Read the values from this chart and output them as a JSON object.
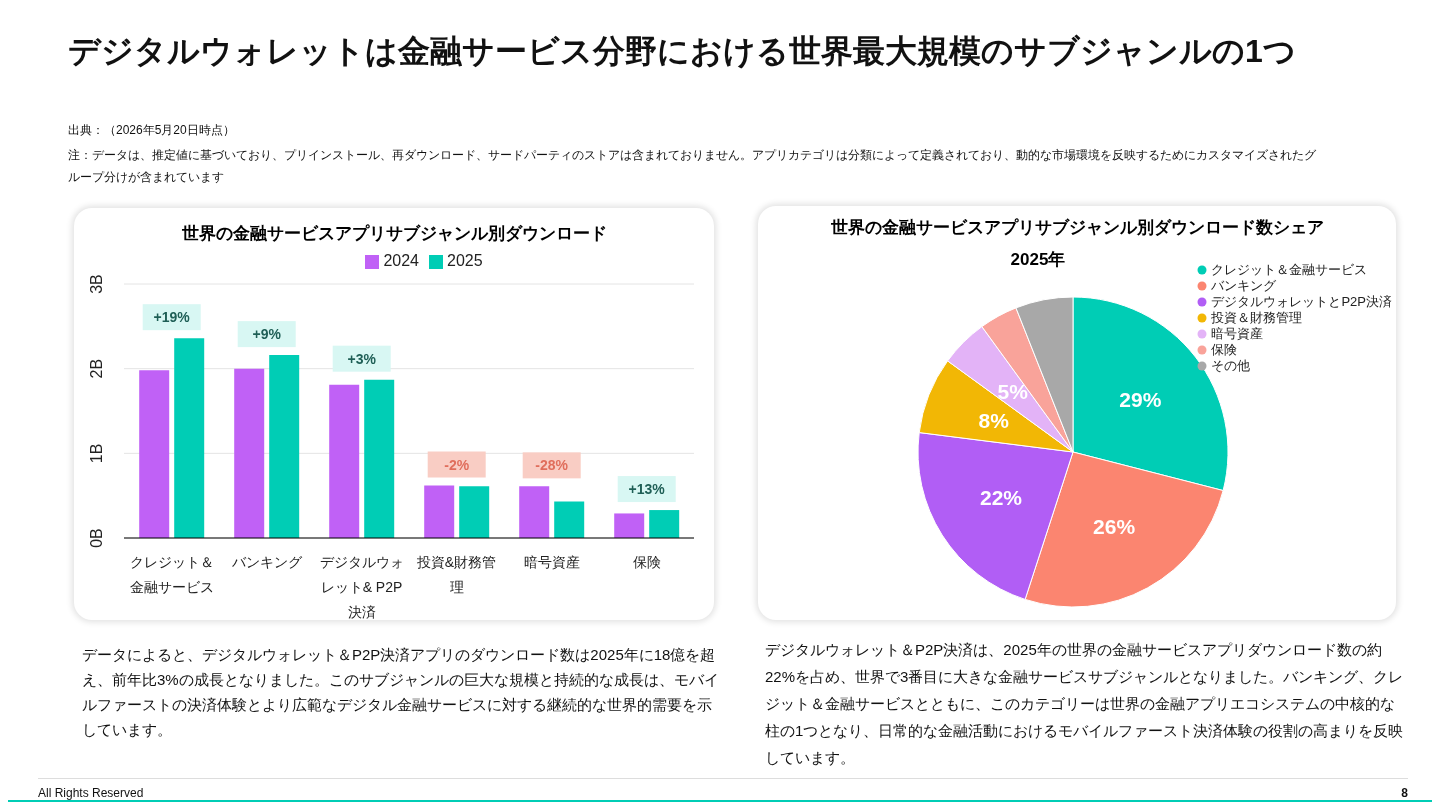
{
  "chart_data": [
    {
      "type": "bar",
      "title": "世界の金融サービスアプリサブジャンル別ダウンロード",
      "categories": [
        "クレジット＆金融サービス",
        "バンキング",
        "デジタルウォレット& P2P決済",
        "投資&財務管理",
        "暗号資産",
        "保険"
      ],
      "series": [
        {
          "name": "2024",
          "color": "#c061f6",
          "values": [
            1.98,
            2.0,
            1.81,
            0.62,
            0.61,
            0.29
          ]
        },
        {
          "name": "2025",
          "color": "#00cdb5",
          "values": [
            2.36,
            2.16,
            1.87,
            0.61,
            0.43,
            0.33
          ]
        }
      ],
      "ylim": [
        0,
        3
      ],
      "yticks": [
        {
          "value": 0,
          "label": "0B"
        },
        {
          "value": 1,
          "label": "1B"
        },
        {
          "value": 2,
          "label": "2B"
        },
        {
          "value": 3,
          "label": "3B"
        }
      ],
      "grid": "y",
      "legend": "top",
      "annotations": [
        "デジタルウォレットは金融サービス分野における世界最大規模のサブジャンルの1つ",
        "出典：（2026年5月20日時点）",
        "注：データは、推定値に基づいており、プリインストール、再ダウンロード、サードパーティのストアは含まれておりません。アプリカテゴリは分類によって定義されており、動的な市場環境を反映するためにカスタマイズされたグループ分けが含まれています",
        "データによると、デジタルウォレット＆P2P決済アプリのダウンロード数は2025年に18億を超え、前年比3%の成長となりました。このサブジャンルの巨大な規模と持続的な成長は、モバイルファーストの決済体験とより広範なデジタル金融サービスに対する継続的な世界的需要を示しています。",
        {
          "text": "+19%",
          "x": "クレジット＆金融サービス",
          "y": 2.36
        },
        {
          "text": "+9%",
          "x": "バンキング",
          "y": 2.16
        },
        {
          "text": "+3%",
          "x": "デジタルウォレット& P2P決済",
          "y": 1.87
        },
        {
          "text": "-2%",
          "x": "投資&財務管理",
          "y": 0.62
        },
        {
          "text": "-28%",
          "x": "暗号資産",
          "y": 0.61
        },
        {
          "text": "+13%",
          "x": "保険",
          "y": 0.33
        }
      ]
    },
    {
      "type": "pie",
      "title": "世界の金融サービスアプリサブジャンル別ダウンロード数シェア",
      "subtitle": "2025年",
      "categories": [
        "クレジット＆金融サービス",
        "バンキング",
        "デジタルウォレットとP2P決済",
        "投資＆財務管理",
        "暗号資産",
        "保険",
        "その他"
      ],
      "values": [
        29,
        26,
        22,
        8,
        5,
        4,
        6
      ],
      "colors": [
        "#00cdb5",
        "#fb8570",
        "#b15ef5",
        "#f2b705",
        "#e3b3f7",
        "#f9a39a",
        "#a8a8a8"
      ],
      "value_labels": [
        "29%",
        "26%",
        "22%",
        "8%",
        "5%",
        null,
        null
      ],
      "legend": "top right",
      "annotations": [
        "デジタルウォレット＆P2P決済は、2025年の世界の金融サービスアプリダウンロード数の約22%を占め、世界で3番目に大きな金融サービスサブジャンルとなりました。バンキング、クレジット＆金融サービスとともに、このカテゴリーは世界の金融アプリエコシステムの中核的な柱の1つとなり、日常的な金融活動におけるモバイルファースト決済体験の役割の高まりを反映しています。",
        "All Rights Reserved",
        "8"
      ]
    }
  ]
}
